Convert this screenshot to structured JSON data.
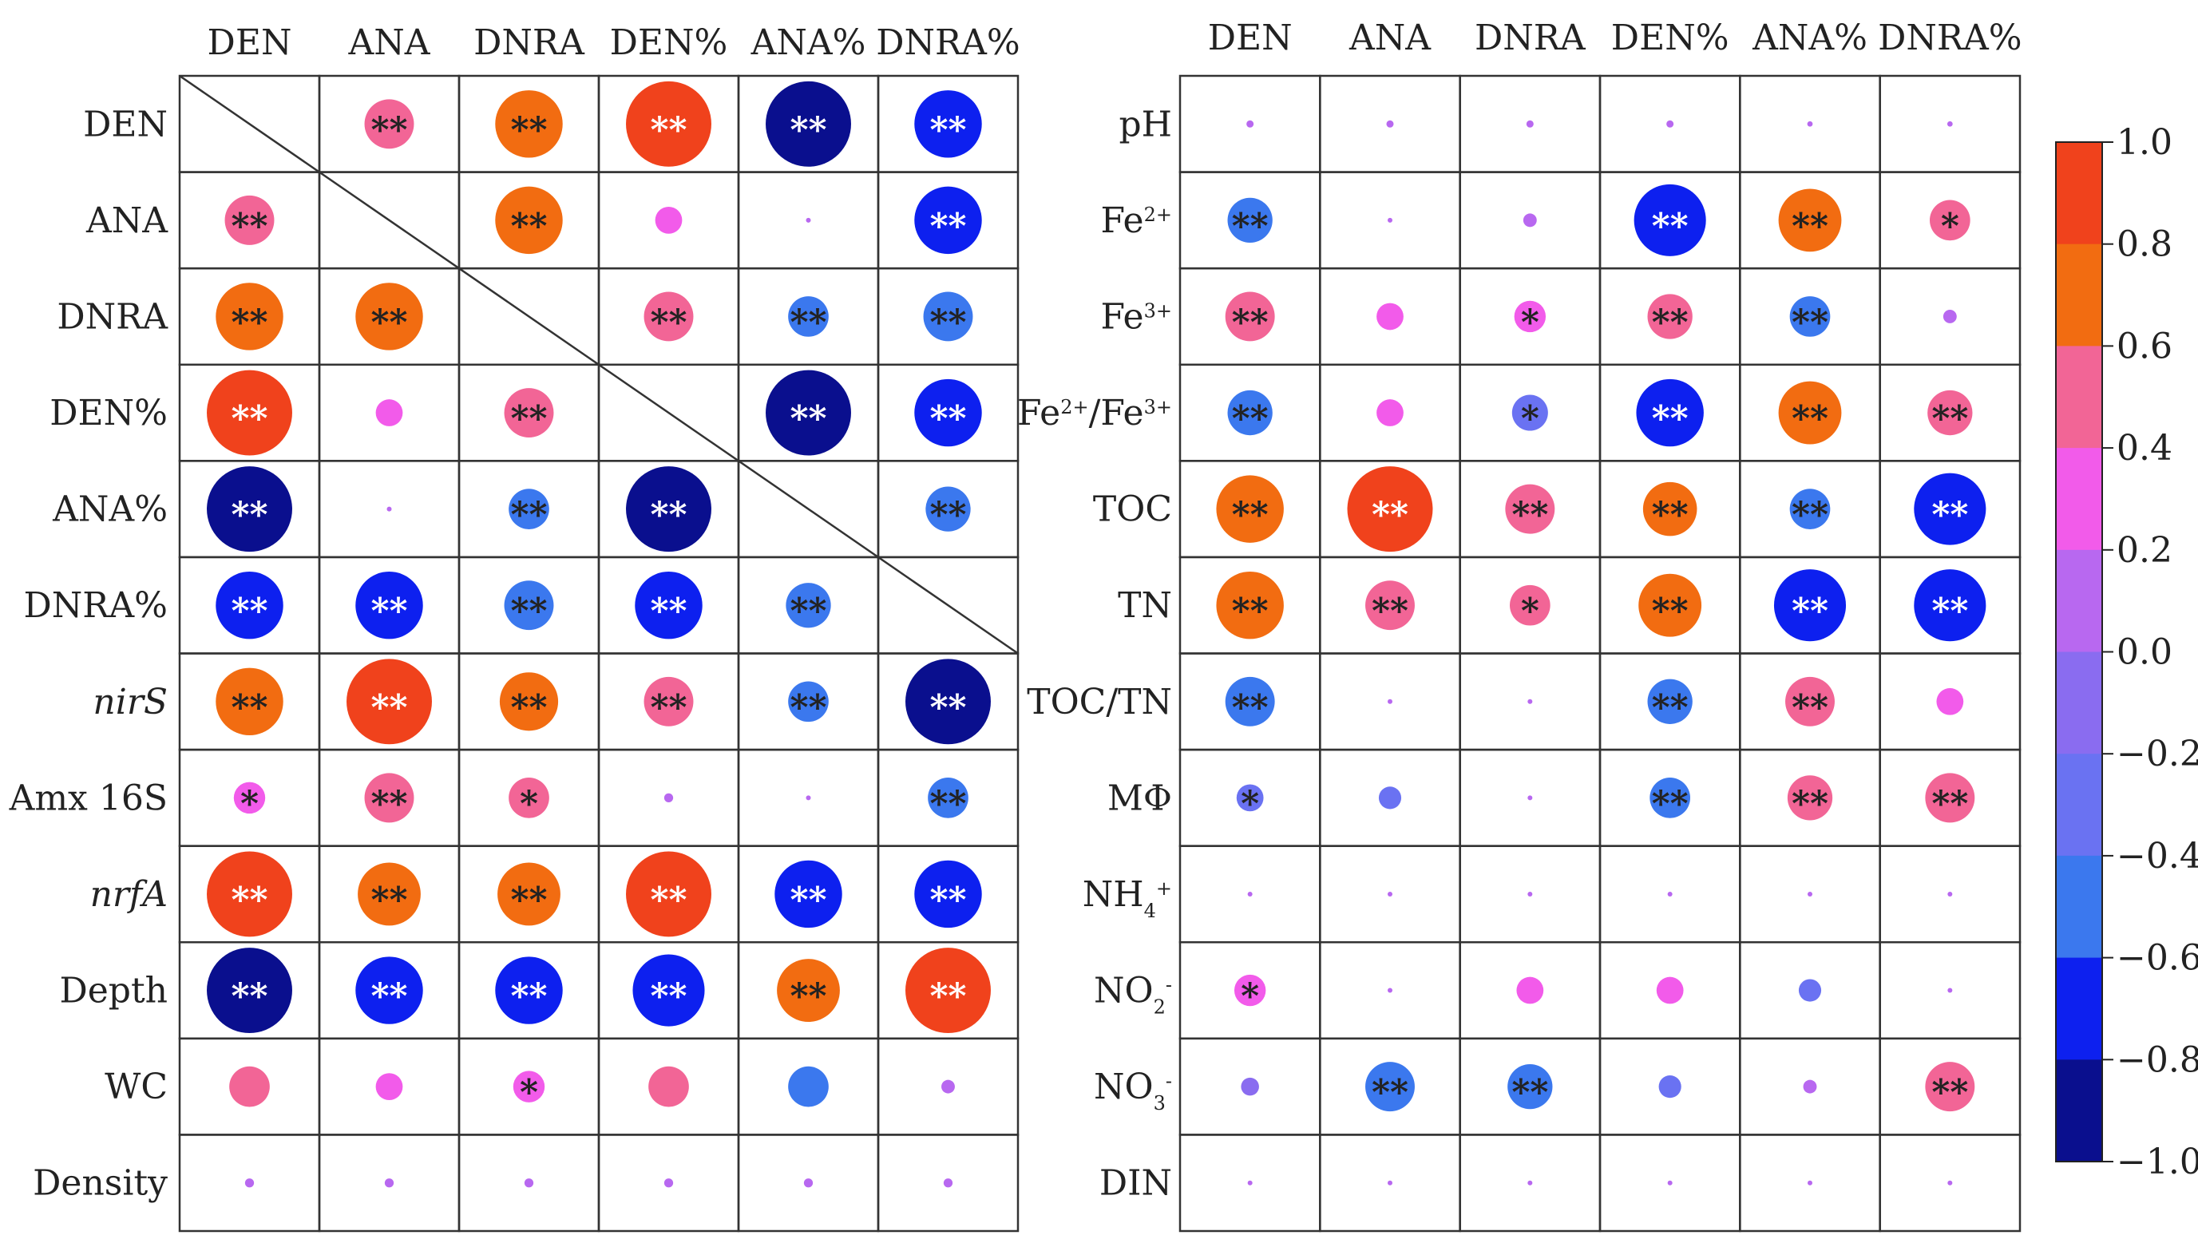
{
  "chart_data": [
    {
      "type": "heatmap",
      "title": "",
      "columns": [
        "DEN",
        "ANA",
        "DNRA",
        "DEN%",
        "ANA%",
        "DNRA%"
      ],
      "rows": [
        "DEN",
        "ANA",
        "DNRA",
        "DEN%",
        "ANA%",
        "DNRA%",
        "nirS",
        "Amx 16S",
        "nrfA",
        "Depth",
        "WC",
        "Density"
      ],
      "italic_rows": [
        "nirS",
        "nrfA"
      ],
      "diagonal_from_row": 0,
      "diagonal_to_row": 5,
      "values": [
        [
          null,
          0.55,
          0.75,
          0.95,
          -0.95,
          -0.75
        ],
        [
          0.55,
          null,
          0.75,
          0.3,
          0.05,
          -0.75
        ],
        [
          0.75,
          0.75,
          null,
          0.55,
          -0.45,
          -0.55
        ],
        [
          0.95,
          0.3,
          0.55,
          null,
          -0.95,
          -0.75
        ],
        [
          -0.95,
          0.05,
          -0.45,
          -0.95,
          null,
          -0.5
        ],
        [
          -0.75,
          -0.75,
          -0.55,
          -0.75,
          -0.5,
          null
        ],
        [
          0.75,
          0.95,
          0.65,
          0.55,
          -0.45,
          -0.95
        ],
        [
          0.35,
          0.55,
          0.45,
          0.1,
          0.05,
          -0.45
        ],
        [
          0.95,
          0.7,
          0.7,
          0.95,
          -0.75,
          -0.75
        ],
        [
          -0.95,
          -0.75,
          -0.75,
          -0.8,
          0.7,
          0.95
        ],
        [
          0.45,
          0.3,
          0.35,
          0.45,
          -0.45,
          0.15
        ],
        [
          0.1,
          0.1,
          0.1,
          0.1,
          0.1,
          0.1
        ]
      ],
      "significance": [
        [
          "",
          "**",
          "**",
          "**",
          "**",
          "**"
        ],
        [
          "**",
          "",
          "**",
          "",
          "",
          "**"
        ],
        [
          "**",
          "**",
          "",
          "**",
          "**",
          "**"
        ],
        [
          "**",
          "",
          "**",
          "",
          "**",
          "**"
        ],
        [
          "**",
          "",
          "**",
          "**",
          "",
          "**"
        ],
        [
          "**",
          "**",
          "**",
          "**",
          "**",
          ""
        ],
        [
          "**",
          "**",
          "**",
          "**",
          "**",
          "**"
        ],
        [
          "*",
          "**",
          "*",
          "",
          "",
          "**"
        ],
        [
          "**",
          "**",
          "**",
          "**",
          "**",
          "**"
        ],
        [
          "**",
          "**",
          "**",
          "**",
          "**",
          "**"
        ],
        [
          "",
          "",
          "*",
          "",
          "",
          ""
        ],
        [
          "",
          "",
          "",
          "",
          "",
          ""
        ]
      ]
    },
    {
      "type": "heatmap",
      "title": "",
      "columns": [
        "DEN",
        "ANA",
        "DNRA",
        "DEN%",
        "ANA%",
        "DNRA%"
      ],
      "rows": [
        "pH",
        "Fe2+",
        "Fe3+",
        "Fe2+/Fe3+",
        "TOC",
        "TN",
        "TOC/TN",
        "MΦ",
        "NH4+",
        "NO2-",
        "NO3-",
        "DIN"
      ],
      "values": [
        [
          0.08,
          0.08,
          0.08,
          0.08,
          0.06,
          0.06
        ],
        [
          -0.5,
          0.05,
          0.15,
          -0.8,
          0.7,
          0.45
        ],
        [
          0.55,
          0.3,
          0.35,
          0.5,
          -0.45,
          0.15
        ],
        [
          -0.5,
          0.3,
          -0.4,
          -0.75,
          0.7,
          0.5
        ],
        [
          0.75,
          0.95,
          0.55,
          0.6,
          -0.45,
          -0.8
        ],
        [
          0.75,
          0.55,
          0.45,
          0.7,
          -0.8,
          -0.8
        ],
        [
          -0.55,
          0.05,
          0.05,
          -0.5,
          0.55,
          0.3
        ],
        [
          -0.3,
          -0.25,
          0.05,
          -0.45,
          0.5,
          0.55
        ],
        [
          0.03,
          0.03,
          0.05,
          0.03,
          0.05,
          0.05
        ],
        [
          0.35,
          0.03,
          0.3,
          0.3,
          -0.25,
          0.03
        ],
        [
          -0.2,
          -0.55,
          -0.5,
          -0.25,
          0.15,
          0.55
        ],
        [
          0.03,
          0.05,
          0.02,
          0.05,
          0.05,
          0.05
        ]
      ],
      "significance": [
        [
          "",
          "",
          "",
          "",
          "",
          ""
        ],
        [
          "**",
          "",
          "",
          "**",
          "**",
          "*"
        ],
        [
          "**",
          "",
          "*",
          "**",
          "**",
          ""
        ],
        [
          "**",
          "",
          "*",
          "**",
          "**",
          "**"
        ],
        [
          "**",
          "**",
          "**",
          "**",
          "**",
          "**"
        ],
        [
          "**",
          "**",
          "*",
          "**",
          "**",
          "**"
        ],
        [
          "**",
          "",
          "",
          "**",
          "**",
          ""
        ],
        [
          "*",
          "",
          "",
          "**",
          "**",
          "**"
        ],
        [
          "",
          "",
          "",
          "",
          "",
          ""
        ],
        [
          "*",
          "",
          "",
          "",
          "",
          ""
        ],
        [
          "",
          "**",
          "**",
          "",
          "",
          "**"
        ],
        [
          "",
          "",
          "",
          "",
          "",
          ""
        ]
      ]
    }
  ],
  "colorbar": {
    "ticks": [
      "1.0",
      "0.8",
      "0.6",
      "0.4",
      "0.2",
      "0.0",
      "−0.2",
      "−0.4",
      "−0.6",
      "−0.8",
      "−1.0"
    ],
    "bins": [
      {
        "range": [
          0.8,
          1.0
        ],
        "color": "#f0421c"
      },
      {
        "range": [
          0.6,
          0.8
        ],
        "color": "#f26c11"
      },
      {
        "range": [
          0.4,
          0.6
        ],
        "color": "#f26596"
      },
      {
        "range": [
          0.2,
          0.4
        ],
        "color": "#f25bea"
      },
      {
        "range": [
          0.0,
          0.2
        ],
        "color": "#b868f0"
      },
      {
        "range": [
          -0.2,
          0.0
        ],
        "color": "#8a6cf0"
      },
      {
        "range": [
          -0.4,
          -0.2
        ],
        "color": "#6a72f2"
      },
      {
        "range": [
          -0.6,
          -0.4
        ],
        "color": "#3b78ee"
      },
      {
        "range": [
          -0.8,
          -0.6
        ],
        "color": "#0d20ef"
      },
      {
        "range": [
          -1.0,
          -0.8
        ],
        "color": "#0a0f8e"
      }
    ]
  },
  "colors": {
    "grid": "#333333",
    "star_on_light": "#222222",
    "star_on_dark": "#ffffff"
  }
}
